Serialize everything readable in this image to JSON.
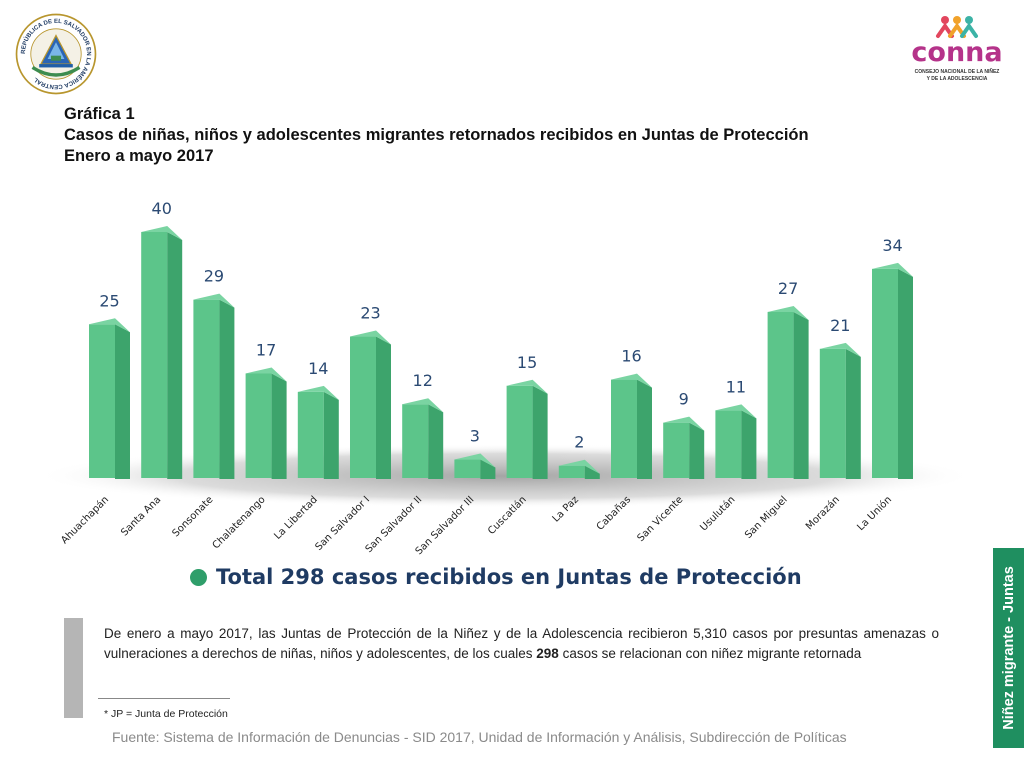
{
  "header": {
    "seal_text": "REPÚBLICA DE EL SALVADOR EN LA AMÉRICA CENTRAL",
    "logo_text": "conna",
    "logo_subtext_1": "CONSEJO NACIONAL DE LA NIÑEZ",
    "logo_subtext_2": "Y DE LA ADOLESCENCIA"
  },
  "title": {
    "line1": "Gráfica 1",
    "line2": "Casos de niñas, niños y adolescentes migrantes retornados recibidos en Juntas de Protección",
    "line3": "Enero a mayo 2017"
  },
  "chart_data": {
    "type": "bar",
    "categories": [
      "Ahuachapán",
      "Santa Ana",
      "Sonsonate",
      "Chalatenango",
      "La Libertad",
      "San Salvador I",
      "San Salvador II",
      "San Salvador III",
      "Cuscatlán",
      "La Paz",
      "Cabañas",
      "San Vicente",
      "Usulután",
      "San Miguel",
      "Morazán",
      "La Unión"
    ],
    "values": [
      25,
      40,
      29,
      17,
      14,
      23,
      12,
      3,
      15,
      2,
      16,
      9,
      11,
      27,
      21,
      34
    ],
    "title": "",
    "xlabel": "",
    "ylabel": "",
    "ylim": [
      0,
      40
    ],
    "grid": false,
    "bar_color": "#5cc58a",
    "bar_side_color": "#3da46c",
    "label_color": "#2b4a73"
  },
  "summary": {
    "total_text": "Total 298 casos recibidos en Juntas de Protección",
    "paragraph_before": "De enero a mayo 2017, las Juntas de Protección de la Niñez y de la Adolescencia recibieron 5,310 casos por presuntas amenazas o vulneraciones a derechos de niñas, niños y adolescentes, de los cuales ",
    "paragraph_bold": "298",
    "paragraph_after": " casos se relacionan con niñez migrante retornada",
    "footnote": "* JP = Junta de Protección"
  },
  "source": "Fuente: Sistema de Información de Denuncias - SID 2017, Unidad de Información y Análisis, Subdirección de Políticas",
  "side_tab": "Niñez migrante - Juntas",
  "icons": {
    "seal": "coat-of-arms-icon",
    "logo": "conna-logo-icon",
    "bullet": "circle-bullet-icon"
  }
}
